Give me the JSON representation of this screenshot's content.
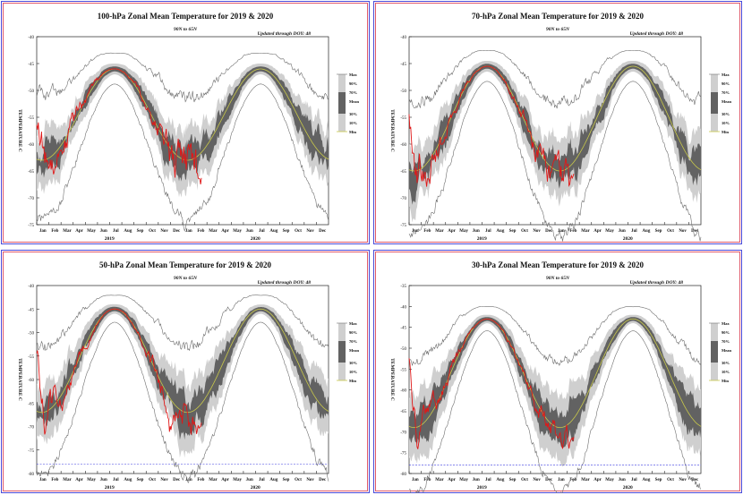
{
  "colors": {
    "frame_outer": "#4a4ad8",
    "frame_inner": "#e05a6a",
    "band_outer": "#cfcfcf",
    "band_inner": "#626262",
    "mean_line": "#c8c84a",
    "current_line": "#e01818",
    "minmax_line": "#6e6e6e",
    "reference_line": "#3a3ae0"
  },
  "chart_data": [
    {
      "type": "line",
      "id": "p100",
      "title": "100-hPa Zonal Mean Temperature for 2019 & 2020",
      "subtitle": "90N to 65N",
      "update_note": "Updated through DOY:  48",
      "ylabel": "TEMPERATURE C",
      "ylim": [
        -75,
        -40
      ],
      "yticks": [
        -40,
        -45,
        -50,
        -55,
        -60,
        -65,
        -70,
        -75
      ],
      "ref_line": null,
      "months": [
        "Jan",
        "Feb",
        "Mar",
        "Apr",
        "May",
        "Jun",
        "Jul",
        "Aug",
        "Sep",
        "Oct",
        "Nov",
        "Dec",
        "Jan",
        "Feb",
        "Mar",
        "Apr",
        "May",
        "Jun",
        "Jul",
        "Aug",
        "Sep",
        "Oct",
        "Nov",
        "Dec"
      ],
      "years": [
        "2019",
        "2020"
      ],
      "legend": [
        "Max",
        "90%",
        "70%",
        "Mean",
        "30%",
        "10%",
        "Min"
      ],
      "series_params": {
        "warm": -46,
        "cold": -63,
        "spread_cold": 5.5,
        "spread_warm": 1.0,
        "curr_start": -54,
        "curr_end": -66
      }
    },
    {
      "type": "line",
      "id": "p70",
      "title": "70-hPa Zonal Mean Temperature for 2019 & 2020",
      "subtitle": "90N to 65N",
      "update_note": "Updated through DOY:  48",
      "ylabel": "TEMPERATURE C",
      "ylim": [
        -75,
        -40
      ],
      "yticks": [
        -40,
        -45,
        -50,
        -55,
        -60,
        -65,
        -70,
        -75
      ],
      "ref_line": null,
      "months": [
        "Jan",
        "Feb",
        "Mar",
        "Apr",
        "May",
        "Jun",
        "Jul",
        "Aug",
        "Sep",
        "Oct",
        "Nov",
        "Dec",
        "Jan",
        "Feb",
        "Mar",
        "Apr",
        "May",
        "Jun",
        "Jul",
        "Aug",
        "Sep",
        "Oct",
        "Nov",
        "Dec"
      ],
      "years": [
        "2019",
        "2020"
      ],
      "legend": [
        "Max",
        "90%",
        "70%",
        "Mean",
        "30%",
        "10%",
        "Min"
      ],
      "series_params": {
        "warm": -45.5,
        "cold": -65,
        "spread_cold": 6.0,
        "spread_warm": 1.0,
        "curr_start": -52,
        "curr_end": -68
      }
    },
    {
      "type": "line",
      "id": "p50",
      "title": "50-hPa Zonal Mean Temperature for 2019 & 2020",
      "subtitle": "90N to 65N",
      "update_note": "Updated through DOY:  48",
      "ylabel": "TEMPERATURE C",
      "ylim": [
        -80,
        -40
      ],
      "yticks": [
        -40,
        -45,
        -50,
        -55,
        -60,
        -65,
        -70,
        -75,
        -80
      ],
      "ref_line": -78,
      "months": [
        "Jan",
        "Feb",
        "Mar",
        "Apr",
        "May",
        "Jun",
        "Jul",
        "Aug",
        "Sep",
        "Oct",
        "Nov",
        "Dec",
        "Jan",
        "Feb",
        "Mar",
        "Apr",
        "May",
        "Jun",
        "Jul",
        "Aug",
        "Sep",
        "Oct",
        "Nov",
        "Dec"
      ],
      "years": [
        "2019",
        "2020"
      ],
      "legend": [
        "Max",
        "90%",
        "70%",
        "Mean",
        "30%",
        "10%",
        "Min"
      ],
      "series_params": {
        "warm": -45,
        "cold": -67,
        "spread_cold": 7.0,
        "spread_warm": 1.0,
        "curr_start": -52,
        "curr_end": -70
      }
    },
    {
      "type": "line",
      "id": "p30",
      "title": "30-hPa Zonal Mean Temperature for 2019 & 2020",
      "subtitle": "90N to 65N",
      "update_note": "Updated through DOY:  48",
      "ylabel": "TEMPERATURE C",
      "ylim": [
        -80,
        -35
      ],
      "yticks": [
        -35,
        -40,
        -45,
        -50,
        -55,
        -60,
        -65,
        -70,
        -75,
        -80
      ],
      "ref_line": -78,
      "months": [
        "Jan",
        "Feb",
        "Mar",
        "Apr",
        "May",
        "Jun",
        "Jul",
        "Aug",
        "Sep",
        "Oct",
        "Nov",
        "Dec",
        "Jan",
        "Feb",
        "Mar",
        "Apr",
        "May",
        "Jun",
        "Jul",
        "Aug",
        "Sep",
        "Oct",
        "Nov",
        "Dec"
      ],
      "years": [
        "2019",
        "2020"
      ],
      "legend": [
        "Max",
        "90%",
        "70%",
        "Mean",
        "30%",
        "10%",
        "Min"
      ],
      "series_params": {
        "warm": -43,
        "cold": -69,
        "spread_cold": 8.0,
        "spread_warm": 1.0,
        "curr_start": -50,
        "curr_end": -72
      }
    }
  ]
}
